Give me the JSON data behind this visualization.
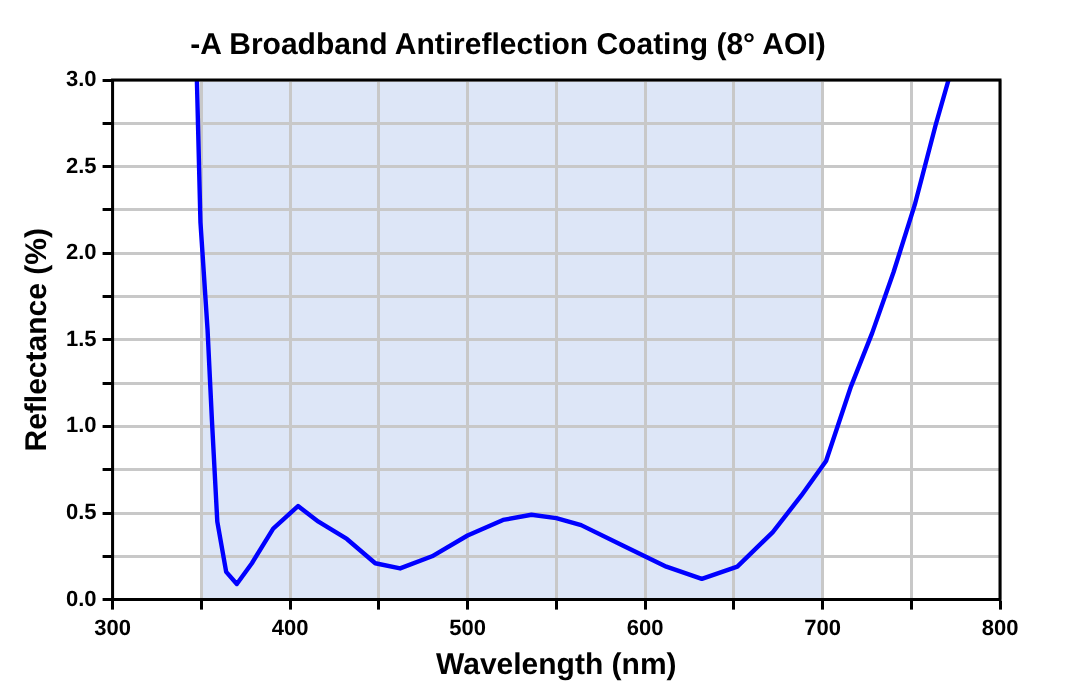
{
  "chart_data": {
    "type": "line",
    "title": "-A Broadband Antireflection Coating (8° AOI)",
    "xlabel": "Wavelength (nm)",
    "ylabel": "Reflectance (%)",
    "x": [
      347.5,
      349.5,
      353.5,
      356,
      359,
      364,
      370,
      378.5,
      390.5,
      404.5,
      416,
      432,
      448,
      462,
      480,
      500,
      520,
      536,
      550,
      564,
      588,
      612,
      632,
      652,
      672,
      688,
      702,
      716,
      728,
      740,
      752,
      764,
      771
    ],
    "series": [
      {
        "color": "#0000ff",
        "values": [
          3.0,
          2.18,
          1.56,
          1.03,
          0.45,
          0.16,
          0.09,
          0.21,
          0.41,
          0.54,
          0.45,
          0.35,
          0.21,
          0.18,
          0.25,
          0.37,
          0.46,
          0.49,
          0.47,
          0.43,
          0.31,
          0.19,
          0.12,
          0.19,
          0.39,
          0.6,
          0.8,
          1.23,
          1.54,
          1.89,
          2.28,
          2.75,
          3.0
        ]
      }
    ],
    "xlim": [
      300,
      800
    ],
    "ylim": [
      0,
      3
    ],
    "xticks": [
      300,
      {
        "value": 350,
        "label": null
      },
      400,
      {
        "value": 450,
        "label": null
      },
      500,
      {
        "value": 550,
        "label": null
      },
      600,
      {
        "value": 650,
        "label": null
      },
      700,
      {
        "value": 750,
        "label": null
      },
      800
    ],
    "yticks": [
      {
        "value": 0,
        "label": "0.0"
      },
      {
        "value": 0.25,
        "label": null
      },
      {
        "value": 0.5,
        "label": "0.5"
      },
      {
        "value": 0.75,
        "label": null
      },
      {
        "value": 1,
        "label": "1.0"
      },
      {
        "value": 1.25,
        "label": null
      },
      {
        "value": 1.5,
        "label": "1.5"
      },
      {
        "value": 1.75,
        "label": null
      },
      {
        "value": 2,
        "label": "2.0"
      },
      {
        "value": 2.25,
        "label": null
      },
      {
        "value": 2.5,
        "label": "2.5"
      },
      {
        "value": 2.75,
        "label": null
      },
      {
        "value": 3,
        "label": "3.0"
      }
    ],
    "bands": [
      {
        "axis": "x",
        "from": 350,
        "to": 700,
        "color": "#dde6f7"
      }
    ],
    "grid": true,
    "marker": "none",
    "line_style": "solid"
  }
}
